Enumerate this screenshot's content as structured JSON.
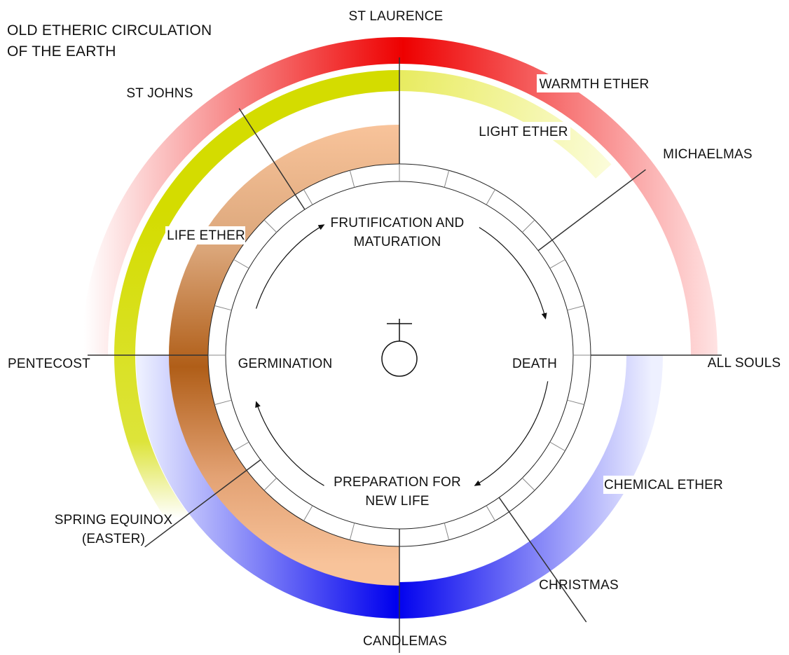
{
  "title_lines": [
    "OLD ETHERIC CIRCULATION",
    "OF THE EARTH"
  ],
  "ethers": {
    "warmth": {
      "label": "WARMTH ETHER",
      "color": "#ee0000"
    },
    "light": {
      "label": "LIGHT ETHER",
      "color": "#d4dc00"
    },
    "life": {
      "label": "LIFE ETHER",
      "color": "#b05e18",
      "light_color": "#f8c39a"
    },
    "chemical": {
      "label": "CHEMICAL ETHER",
      "color": "#0000ee"
    }
  },
  "festivals": {
    "st_laurence": "ST LAURENCE",
    "st_johns": "ST JOHNS",
    "michaelmas": "MICHAELMAS",
    "pentecost": "PENTECOST",
    "all_souls": "ALL SOULS",
    "spring_equinox": [
      "SPRING EQUINOX",
      "(EASTER)"
    ],
    "christmas": "CHRISTMAS",
    "candlemas": "CANDLEMAS"
  },
  "phases": {
    "fruitification": [
      "FRUTIFICATION AND",
      "MATURATION"
    ],
    "death": "DEATH",
    "preparation": [
      "PREPARATION FOR",
      "NEW LIFE"
    ],
    "germination": "GERMINATION"
  },
  "calendar_segments": 24,
  "center_icon": "earth-symbol-icon"
}
